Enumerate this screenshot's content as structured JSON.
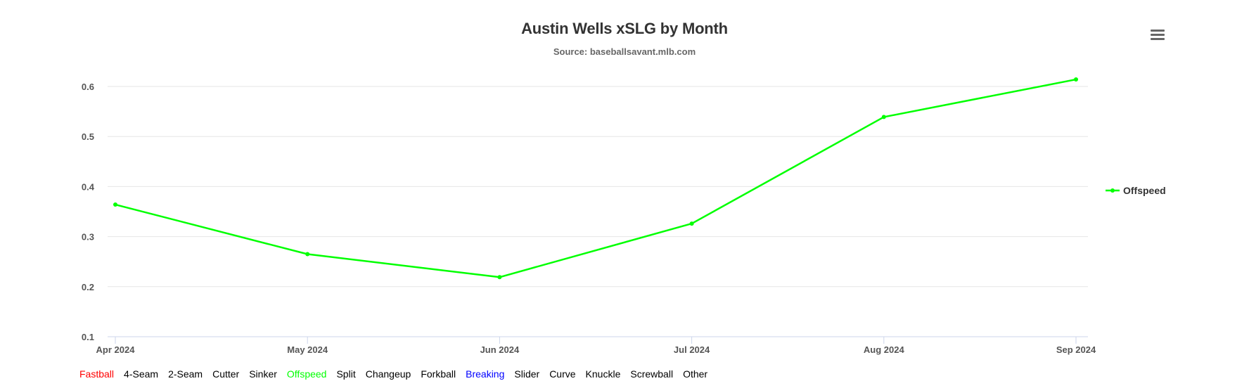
{
  "chart_data": {
    "type": "line",
    "title": "Austin Wells xSLG by Month",
    "subtitle": "Source: baseballsavant.mlb.com",
    "xlabel": "",
    "ylabel": "",
    "categories": [
      "Apr 2024",
      "May 2024",
      "Jun 2024",
      "Jul 2024",
      "Aug 2024",
      "Sep 2024"
    ],
    "series": [
      {
        "name": "Offspeed",
        "color": "#00ff00",
        "values": [
          0.364,
          0.265,
          0.219,
          0.326,
          0.539,
          0.614
        ]
      }
    ],
    "ylim": [
      0.1,
      0.6
    ],
    "yticks": [
      "0.1",
      "0.2",
      "0.3",
      "0.4",
      "0.5",
      "0.6"
    ],
    "grid": true,
    "legend_placement": "right"
  },
  "menu": {
    "icon": "hamburger-menu-icon"
  },
  "pitch_legend": {
    "items": [
      {
        "label": "Fastball",
        "color": "#ff0000"
      },
      {
        "label": "4-Seam",
        "color": "#000000"
      },
      {
        "label": "2-Seam",
        "color": "#000000"
      },
      {
        "label": "Cutter",
        "color": "#000000"
      },
      {
        "label": "Sinker",
        "color": "#000000"
      },
      {
        "label": "Offspeed",
        "color": "#00ff00"
      },
      {
        "label": "Split",
        "color": "#000000"
      },
      {
        "label": "Changeup",
        "color": "#000000"
      },
      {
        "label": "Forkball",
        "color": "#000000"
      },
      {
        "label": "Breaking",
        "color": "#0000ff"
      },
      {
        "label": "Slider",
        "color": "#000000"
      },
      {
        "label": "Curve",
        "color": "#000000"
      },
      {
        "label": "Knuckle",
        "color": "#000000"
      },
      {
        "label": "Screwball",
        "color": "#000000"
      },
      {
        "label": "Other",
        "color": "#000000"
      }
    ]
  }
}
